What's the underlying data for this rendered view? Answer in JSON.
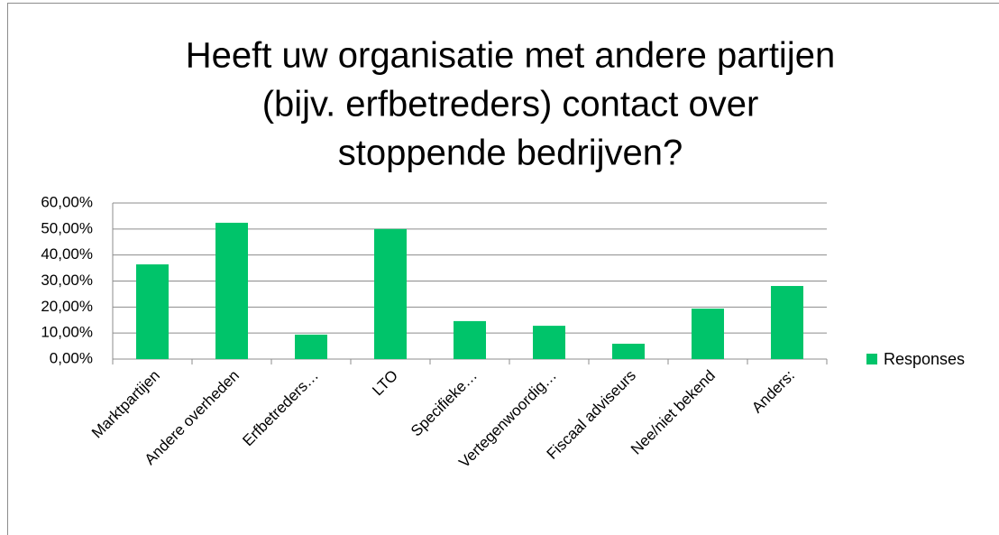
{
  "chart_data": {
    "type": "bar",
    "title": [
      "Heeft uw organisatie met andere partijen",
      "(bijv. erfbetreders) contact over",
      "stoppende bedrijven?"
    ],
    "categories": [
      "Marktpartijen",
      "Andere overheden",
      "Erfbetreders…",
      "LTO",
      "Specifieke…",
      "Vertegenwoordig…",
      "Fiscaal adviseurs",
      "Nee/niet bekend",
      "Anders:"
    ],
    "series": [
      {
        "name": "Responses",
        "color": "#00c46a",
        "values": [
          36.4,
          52.4,
          9.4,
          50,
          14.6,
          12.8,
          5.9,
          19.4,
          28.1
        ]
      }
    ],
    "ylim": [
      0,
      60
    ],
    "yticks": [
      {
        "value": 0,
        "label": "0,00%"
      },
      {
        "value": 10,
        "label": "10,00%"
      },
      {
        "value": 20,
        "label": "20,00%"
      },
      {
        "value": 30,
        "label": "30,00%"
      },
      {
        "value": 40,
        "label": "40,00%"
      },
      {
        "value": 50,
        "label": "50,00%"
      },
      {
        "value": 60,
        "label": "60,00%"
      }
    ],
    "grid": true,
    "legend": "right"
  }
}
